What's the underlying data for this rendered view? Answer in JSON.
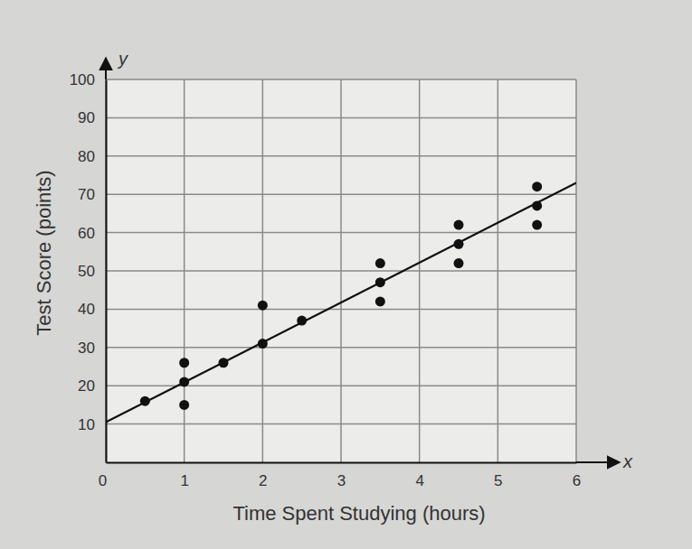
{
  "chart_data": {
    "type": "scatter",
    "x_label": "Time Spent Studying (hours)",
    "y_label": "Test Score (points)",
    "annotations": [
      "y",
      "x"
    ],
    "xlim": [
      0,
      6
    ],
    "ylim": [
      0,
      100
    ],
    "xticks": [
      0,
      1,
      2,
      3,
      4,
      5,
      6
    ],
    "yticks": [
      10,
      20,
      30,
      40,
      50,
      60,
      70,
      80,
      90,
      100
    ],
    "grid": true,
    "series": [
      {
        "type": "scatter",
        "marker": "circle",
        "color": "#111111",
        "x": [
          0.5,
          1,
          1,
          1,
          1.5,
          2,
          2,
          2.5,
          3.5,
          3.5,
          3.5,
          4.5,
          4.5,
          4.5,
          5.5,
          5.5,
          5.5
        ],
        "values": [
          16,
          26,
          21,
          15,
          26,
          41,
          31,
          37,
          52,
          47,
          42,
          62,
          57,
          52,
          72,
          67,
          62
        ]
      },
      {
        "type": "line",
        "line_style": "solid",
        "color": "#111111",
        "x": [
          0,
          6
        ],
        "values": [
          10.5,
          73
        ]
      }
    ]
  }
}
